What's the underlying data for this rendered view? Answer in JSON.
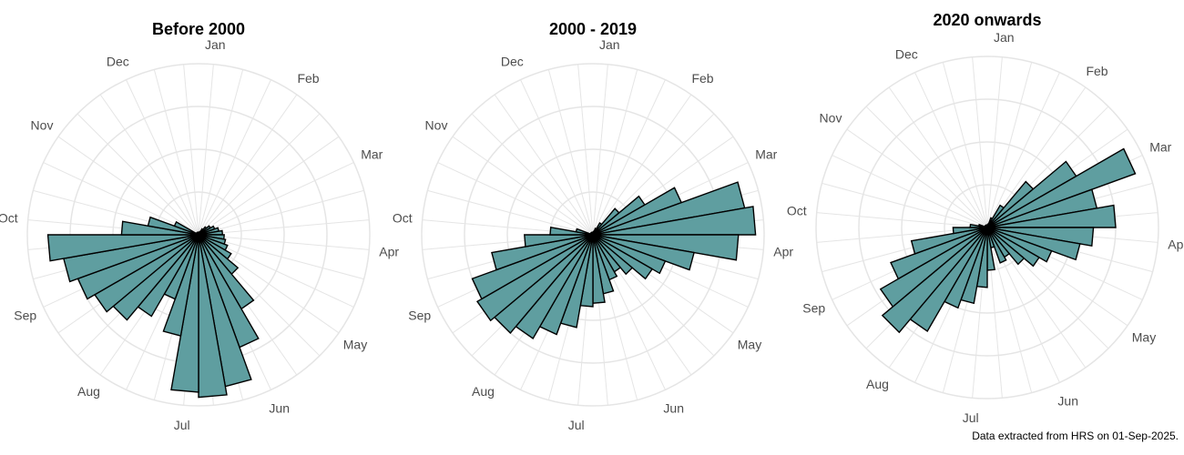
{
  "caption": "Data extracted from HRS on 01-Sep-2025.",
  "colors": {
    "bar_fill": "#5f9ea0",
    "bar_stroke": "#000000",
    "grid": "#e5e5e5",
    "label": "#4d4d4d"
  },
  "chart_data": [
    {
      "type": "polar-bar",
      "title": "Before 2000",
      "months": [
        "Jan",
        "Feb",
        "Mar",
        "Apr",
        "May",
        "Jun",
        "Jul",
        "Aug",
        "Sep",
        "Oct",
        "Nov",
        "Dec"
      ],
      "grid_rings": 4,
      "rmax": 1,
      "start_angle_deg": 0,
      "end_angle_deg": 360,
      "values": [
        0.0,
        0.0,
        0.02,
        0.04,
        0.06,
        0.08,
        0.1,
        0.12,
        0.14,
        0.15,
        0.16,
        0.18,
        0.22,
        0.3,
        0.5,
        0.7,
        0.9,
        0.95,
        0.92,
        0.6,
        0.4,
        0.55,
        0.65,
        0.7,
        0.75,
        0.8,
        0.88,
        0.45,
        0.3,
        0.15,
        0.0,
        0.0,
        0.0,
        0.0,
        0.0,
        0.0
      ]
    },
    {
      "type": "polar-bar",
      "title": "2000 - 2019",
      "months": [
        "Jan",
        "Feb",
        "Mar",
        "Apr",
        "May",
        "Jun",
        "Jul",
        "Aug",
        "Sep",
        "Oct",
        "Nov",
        "Dec"
      ],
      "grid_rings": 4,
      "rmax": 1,
      "start_angle_deg": 0,
      "end_angle_deg": 360,
      "values": [
        0.0,
        0.02,
        0.04,
        0.08,
        0.2,
        0.35,
        0.55,
        0.9,
        0.95,
        0.85,
        0.6,
        0.45,
        0.4,
        0.3,
        0.25,
        0.28,
        0.35,
        0.4,
        0.42,
        0.55,
        0.62,
        0.7,
        0.75,
        0.78,
        0.75,
        0.6,
        0.4,
        0.25,
        0.1,
        0.0,
        0.0,
        0.0,
        0.0,
        0.0,
        0.0,
        0.0
      ]
    },
    {
      "type": "polar-bar",
      "title": "2020 onwards",
      "months": [
        "Jan",
        "Feb",
        "Mar",
        "Apr",
        "May",
        "Jun",
        "Jul",
        "Aug",
        "Sep",
        "Oct",
        "Nov",
        "Dec"
      ],
      "grid_rings": 4,
      "rmax": 1,
      "start_angle_deg": 0,
      "end_angle_deg": 360,
      "values": [
        0.0,
        0.02,
        0.06,
        0.15,
        0.35,
        0.6,
        0.92,
        0.65,
        0.75,
        0.62,
        0.55,
        0.4,
        0.35,
        0.28,
        0.2,
        0.22,
        0.12,
        0.25,
        0.35,
        0.45,
        0.5,
        0.7,
        0.8,
        0.72,
        0.6,
        0.45,
        0.2,
        0.1,
        0.05,
        0.0,
        0.0,
        0.0,
        0.0,
        0.0,
        0.0,
        0.0
      ]
    }
  ]
}
